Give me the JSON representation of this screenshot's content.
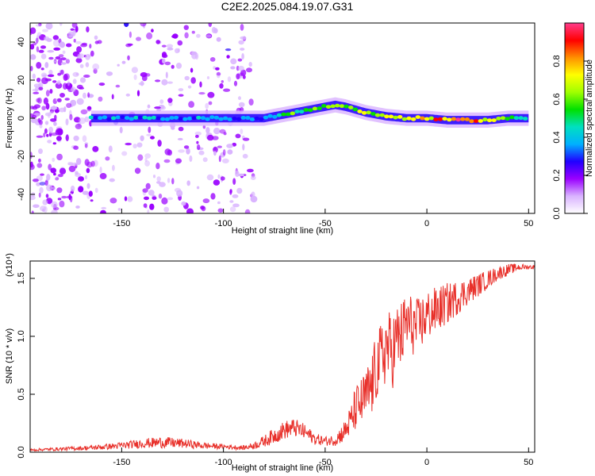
{
  "title": "C2E2.2025.084.19.07.G31",
  "chart_data": [
    {
      "type": "heatmap",
      "xlabel": "Height of straight line (km)",
      "ylabel": "Frequency (Hz)",
      "xlim": [
        -195,
        53
      ],
      "ylim": [
        -50,
        50
      ],
      "xticks": [
        -150,
        -100,
        -50,
        0,
        50
      ],
      "yticks": [
        -40,
        -20,
        0,
        20,
        40
      ],
      "grid": false,
      "colorbar": {
        "label": "Normalized spectral amplitude",
        "range": [
          0,
          1
        ],
        "ticks": [
          0.0,
          0.2,
          0.4,
          0.6,
          0.8
        ],
        "tick_labels": [
          "0.0",
          "0.2",
          "0.4",
          "0.6",
          "0.8"
        ],
        "colormap": [
          "#ffffff",
          "#d9b3ff",
          "#9a00ff",
          "#2000ff",
          "#00b0ff",
          "#00e0c0",
          "#00e000",
          "#a0ff00",
          "#ffff00",
          "#ff9000",
          "#ff0000",
          "#ff3c8c"
        ]
      },
      "ridge": {
        "x": [
          -165,
          -150,
          -130,
          -110,
          -100,
          -90,
          -80,
          -70,
          -60,
          -50,
          -45,
          -40,
          -30,
          -20,
          -10,
          0,
          10,
          20,
          30,
          40,
          50
        ],
        "y": [
          0,
          0,
          0,
          0,
          0,
          0,
          0,
          2,
          4,
          6,
          7,
          6,
          3,
          1,
          0,
          0,
          -1,
          -1,
          -1,
          0,
          0
        ],
        "amplitude": [
          0.35,
          0.4,
          0.4,
          0.35,
          0.35,
          0.3,
          0.35,
          0.5,
          0.55,
          0.6,
          0.65,
          0.6,
          0.6,
          0.65,
          0.7,
          0.75,
          0.85,
          0.9,
          0.7,
          0.6,
          0.5
        ]
      }
    },
    {
      "type": "line",
      "xlabel": "Height of straight line (km)",
      "ylabel": "SNR (10 * v/v)",
      "yscale_label": "(x10⁴)",
      "xlim": [
        -195,
        53
      ],
      "ylim": [
        0,
        1.65
      ],
      "xticks": [
        -150,
        -100,
        -50,
        0,
        50
      ],
      "yticks": [
        0.0,
        0.5,
        1.0,
        1.5
      ],
      "ytick_labels": [
        "0.0",
        "0.5",
        "1.0",
        "1.5"
      ],
      "grid": false,
      "series": [
        {
          "color": "#e8302a",
          "x": [
            -195,
            -180,
            -165,
            -150,
            -140,
            -130,
            -120,
            -110,
            -100,
            -90,
            -85,
            -80,
            -75,
            -70,
            -65,
            -60,
            -55,
            -50,
            -45,
            -40,
            -37,
            -35,
            -32,
            -30,
            -27,
            -25,
            -22,
            -20,
            -17,
            -15,
            -12,
            -10,
            -5,
            0,
            5,
            10,
            15,
            20,
            25,
            30,
            35,
            40,
            45,
            50,
            53
          ],
          "y": [
            0.02,
            0.03,
            0.04,
            0.06,
            0.08,
            0.09,
            0.08,
            0.06,
            0.05,
            0.04,
            0.06,
            0.1,
            0.15,
            0.2,
            0.22,
            0.18,
            0.12,
            0.1,
            0.11,
            0.2,
            0.3,
            0.4,
            0.45,
            0.5,
            0.6,
            0.75,
            0.85,
            0.95,
            0.9,
            1.0,
            1.05,
            1.15,
            1.1,
            1.2,
            1.25,
            1.3,
            1.35,
            1.4,
            1.45,
            1.5,
            1.55,
            1.58,
            1.6,
            1.6,
            1.6
          ],
          "noise": [
            0.01,
            0.015,
            0.02,
            0.03,
            0.04,
            0.05,
            0.04,
            0.03,
            0.02,
            0.02,
            0.03,
            0.05,
            0.07,
            0.08,
            0.08,
            0.07,
            0.05,
            0.04,
            0.05,
            0.1,
            0.15,
            0.2,
            0.22,
            0.25,
            0.28,
            0.3,
            0.32,
            0.33,
            0.33,
            0.32,
            0.3,
            0.28,
            0.25,
            0.22,
            0.2,
            0.18,
            0.15,
            0.12,
            0.1,
            0.08,
            0.06,
            0.05,
            0.03,
            0.02,
            0.02
          ]
        }
      ]
    }
  ]
}
